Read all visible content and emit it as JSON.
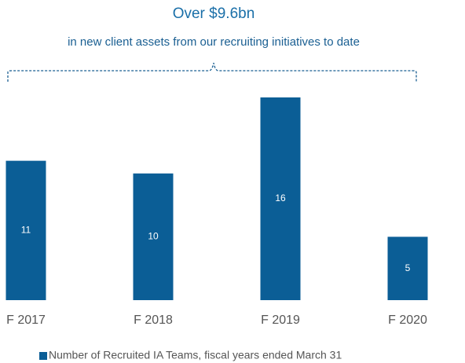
{
  "chart_data": {
    "type": "bar",
    "title": "Over $9.6bn",
    "subtitle": "in new client assets from our recruiting initiatives to date",
    "categories": [
      "F 2017",
      "F 2018",
      "F 2019",
      "F 2020"
    ],
    "series": [
      {
        "name": "Number of Recruited IA Teams, fiscal years ended March 31",
        "color": "#0b5e96",
        "values": [
          11,
          10,
          16,
          5
        ]
      }
    ]
  }
}
